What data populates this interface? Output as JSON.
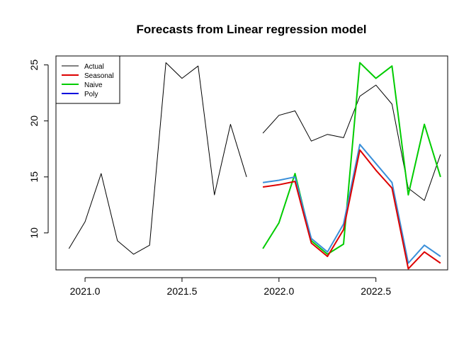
{
  "chart_data": {
    "type": "line",
    "title": "Forecasts from Linear regression model",
    "xlabel": "",
    "ylabel": "",
    "xlim": [
      2020.85,
      2022.87
    ],
    "ylim": [
      6.7,
      25.8
    ],
    "x_ticks": [
      2021.0,
      2021.5,
      2022.0,
      2022.5
    ],
    "x_tick_labels": [
      "2021.0",
      "2021.5",
      "2022.0",
      "2022.5"
    ],
    "y_ticks": [
      10,
      15,
      20,
      25
    ],
    "y_tick_labels": [
      "10",
      "15",
      "20",
      "25"
    ],
    "grid": false,
    "legend_position": "top-left",
    "legend": [
      {
        "label": "Actual",
        "color": "#000000"
      },
      {
        "label": "Seasonal",
        "color": "#dd0000"
      },
      {
        "label": "Naive",
        "color": "#00cc00"
      },
      {
        "label": "Poly",
        "color": "#0000dd"
      }
    ],
    "series": [
      {
        "name": "Actual",
        "color": "#000000",
        "width": 1,
        "x": [
          2020.917,
          2021.0,
          2021.083,
          2021.167,
          2021.25,
          2021.333,
          2021.417,
          2021.5,
          2021.583,
          2021.667,
          2021.75,
          2021.833
        ],
        "values": [
          8.6,
          11.0,
          15.3,
          9.3,
          8.1,
          8.9,
          25.2,
          23.8,
          24.9,
          13.4,
          19.7,
          15.0
        ]
      },
      {
        "name": "Actual",
        "color": "#000000",
        "width": 1,
        "x": [
          2021.917,
          2022.0,
          2022.083,
          2022.167,
          2022.25,
          2022.333,
          2022.417,
          2022.5,
          2022.583,
          2022.667,
          2022.75,
          2022.833
        ],
        "values": [
          18.9,
          20.5,
          20.9,
          18.2,
          18.8,
          18.5,
          22.2,
          23.2,
          21.5,
          14.0,
          12.9,
          17.0
        ]
      },
      {
        "name": "Naive",
        "color": "#00cc00",
        "width": 2,
        "x": [
          2021.917,
          2022.0,
          2022.083,
          2022.167,
          2022.25,
          2022.333,
          2022.417,
          2022.5,
          2022.583,
          2022.667,
          2022.75,
          2022.833
        ],
        "values": [
          8.6,
          10.9,
          15.3,
          9.3,
          8.1,
          9.0,
          25.2,
          23.8,
          24.9,
          13.4,
          19.7,
          15.0
        ]
      },
      {
        "name": "Poly",
        "color": "#3a8fd9",
        "width": 2,
        "x": [
          2021.917,
          2022.0,
          2022.083,
          2022.167,
          2022.25,
          2022.333,
          2022.417,
          2022.5,
          2022.583,
          2022.667,
          2022.75,
          2022.833
        ],
        "values": [
          14.5,
          14.7,
          15.0,
          9.5,
          8.3,
          10.8,
          17.9,
          16.2,
          14.5,
          7.3,
          8.9,
          7.9
        ]
      },
      {
        "name": "Seasonal",
        "color": "#dd0000",
        "width": 2,
        "x": [
          2021.917,
          2022.0,
          2022.083,
          2022.167,
          2022.25,
          2022.333,
          2022.417,
          2022.5,
          2022.583,
          2022.667,
          2022.75,
          2022.833
        ],
        "values": [
          14.1,
          14.3,
          14.6,
          9.1,
          7.9,
          10.3,
          17.4,
          15.6,
          14.0,
          6.8,
          8.3,
          7.3
        ]
      }
    ]
  }
}
